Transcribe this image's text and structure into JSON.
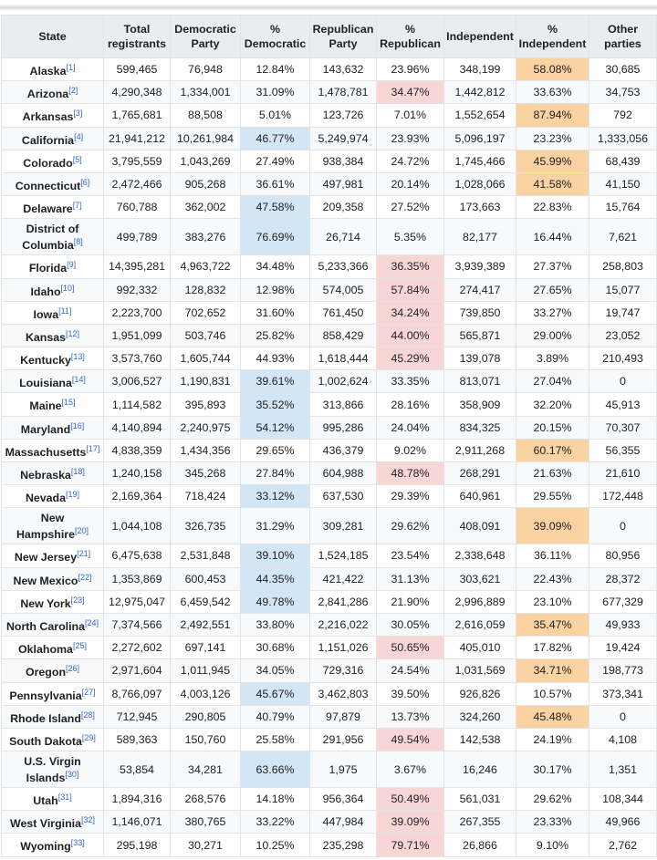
{
  "headers": [
    "State",
    "Total registrants",
    "Democratic Party",
    "% Democratic",
    "Republican Party",
    "% Republican",
    "Independent",
    "% Independent",
    "Other parties"
  ],
  "highlight_colors": {
    "dem": "#d2e6f5",
    "rep": "#f9d6d6",
    "ind": "#fbd2a2"
  },
  "rows": [
    {
      "state": "Alaska",
      "ref": "[1]",
      "total": "599,465",
      "dem": "76,948",
      "pdem": "12.84%",
      "rep": "143,632",
      "prep": "23.96%",
      "ind": "348,199",
      "pind": "58.08%",
      "other": "30,685",
      "highlight": "ind"
    },
    {
      "state": "Arizona",
      "ref": "[2]",
      "total": "4,290,348",
      "dem": "1,334,001",
      "pdem": "31.09%",
      "rep": "1,478,781",
      "prep": "34.47%",
      "ind": "1,442,812",
      "pind": "33.63%",
      "other": "34,753",
      "highlight": "rep"
    },
    {
      "state": "Arkansas",
      "ref": "[3]",
      "total": "1,765,681",
      "dem": "88,508",
      "pdem": "5.01%",
      "rep": "123,726",
      "prep": "7.01%",
      "ind": "1,552,654",
      "pind": "87.94%",
      "other": "792",
      "highlight": "ind"
    },
    {
      "state": "California",
      "ref": "[4]",
      "total": "21,941,212",
      "dem": "10,261,984",
      "pdem": "46.77%",
      "rep": "5,249,974",
      "prep": "23.93%",
      "ind": "5,096,197",
      "pind": "23.23%",
      "other": "1,333,056",
      "highlight": "dem"
    },
    {
      "state": "Colorado",
      "ref": "[5]",
      "total": "3,795,559",
      "dem": "1,043,269",
      "pdem": "27.49%",
      "rep": "938,384",
      "prep": "24.72%",
      "ind": "1,745,466",
      "pind": "45.99%",
      "other": "68,439",
      "highlight": "ind"
    },
    {
      "state": "Connecticut",
      "ref": "[6]",
      "total": "2,472,466",
      "dem": "905,268",
      "pdem": "36.61%",
      "rep": "497,981",
      "prep": "20.14%",
      "ind": "1,028,066",
      "pind": "41.58%",
      "other": "41,150",
      "highlight": "ind"
    },
    {
      "state": "Delaware",
      "ref": "[7]",
      "total": "760,788",
      "dem": "362,002",
      "pdem": "47.58%",
      "rep": "209,358",
      "prep": "27.52%",
      "ind": "173,663",
      "pind": "22.83%",
      "other": "15,764",
      "highlight": "dem"
    },
    {
      "state": "District of Columbia",
      "ref": "[8]",
      "total": "499,789",
      "dem": "383,276",
      "pdem": "76.69%",
      "rep": "26,714",
      "prep": "5.35%",
      "ind": "82,177",
      "pind": "16.44%",
      "other": "7,621",
      "highlight": "dem",
      "tall": true
    },
    {
      "state": "Florida",
      "ref": "[9]",
      "total": "14,395,281",
      "dem": "4,963,722",
      "pdem": "34.48%",
      "rep": "5,233,366",
      "prep": "36.35%",
      "ind": "3,939,389",
      "pind": "27.37%",
      "other": "258,803",
      "highlight": "rep"
    },
    {
      "state": "Idaho",
      "ref": "[10]",
      "total": "992,332",
      "dem": "128,832",
      "pdem": "12.98%",
      "rep": "574,005",
      "prep": "57.84%",
      "ind": "274,417",
      "pind": "27.65%",
      "other": "15,077",
      "highlight": "rep"
    },
    {
      "state": "Iowa",
      "ref": "[11]",
      "total": "2,223,700",
      "dem": "702,652",
      "pdem": "31.60%",
      "rep": "761,450",
      "prep": "34.24%",
      "ind": "739,850",
      "pind": "33.27%",
      "other": "19,747",
      "highlight": "rep"
    },
    {
      "state": "Kansas",
      "ref": "[12]",
      "total": "1,951,099",
      "dem": "503,746",
      "pdem": "25.82%",
      "rep": "858,429",
      "prep": "44.00%",
      "ind": "565,871",
      "pind": "29.00%",
      "other": "23,052",
      "highlight": "rep"
    },
    {
      "state": "Kentucky",
      "ref": "[13]",
      "total": "3,573,760",
      "dem": "1,605,744",
      "pdem": "44.93%",
      "rep": "1,618,444",
      "prep": "45.29%",
      "ind": "139,078",
      "pind": "3.89%",
      "other": "210,493",
      "highlight": "rep"
    },
    {
      "state": "Louisiana",
      "ref": "[14]",
      "total": "3,006,527",
      "dem": "1,190,831",
      "pdem": "39.61%",
      "rep": "1,002,624",
      "prep": "33.35%",
      "ind": "813,071",
      "pind": "27.04%",
      "other": "0",
      "highlight": "dem"
    },
    {
      "state": "Maine",
      "ref": "[15]",
      "total": "1,114,582",
      "dem": "395,893",
      "pdem": "35.52%",
      "rep": "313,866",
      "prep": "28.16%",
      "ind": "358,909",
      "pind": "32.20%",
      "other": "45,913",
      "highlight": "dem"
    },
    {
      "state": "Maryland",
      "ref": "[16]",
      "total": "4,140,894",
      "dem": "2,240,975",
      "pdem": "54.12%",
      "rep": "995,286",
      "prep": "24.04%",
      "ind": "834,325",
      "pind": "20.15%",
      "other": "70,307",
      "highlight": "dem"
    },
    {
      "state": "Massachusetts",
      "ref": "[17]",
      "total": "4,838,359",
      "dem": "1,434,356",
      "pdem": "29.65%",
      "rep": "436,379",
      "prep": "9.02%",
      "ind": "2,911,268",
      "pind": "60.17%",
      "other": "56,355",
      "highlight": "ind"
    },
    {
      "state": "Nebraska",
      "ref": "[18]",
      "total": "1,240,158",
      "dem": "345,268",
      "pdem": "27.84%",
      "rep": "604,988",
      "prep": "48.78%",
      "ind": "268,291",
      "pind": "21.63%",
      "other": "21,610",
      "highlight": "rep"
    },
    {
      "state": "Nevada",
      "ref": "[19]",
      "total": "2,169,364",
      "dem": "718,424",
      "pdem": "33.12%",
      "rep": "637,530",
      "prep": "29.39%",
      "ind": "640,961",
      "pind": "29.55%",
      "other": "172,448",
      "highlight": "dem"
    },
    {
      "state": "New Hampshire",
      "ref": "[20]",
      "total": "1,044,108",
      "dem": "326,735",
      "pdem": "31.29%",
      "rep": "309,281",
      "prep": "29.62%",
      "ind": "408,091",
      "pind": "39.09%",
      "other": "0",
      "highlight": "ind",
      "tall": true
    },
    {
      "state": "New Jersey",
      "ref": "[21]",
      "total": "6,475,638",
      "dem": "2,531,848",
      "pdem": "39.10%",
      "rep": "1,524,185",
      "prep": "23.54%",
      "ind": "2,338,648",
      "pind": "36.11%",
      "other": "80,956",
      "highlight": "dem"
    },
    {
      "state": "New Mexico",
      "ref": "[22]",
      "total": "1,353,869",
      "dem": "600,453",
      "pdem": "44.35%",
      "rep": "421,422",
      "prep": "31.13%",
      "ind": "303,621",
      "pind": "22.43%",
      "other": "28,372",
      "highlight": "dem"
    },
    {
      "state": "New York",
      "ref": "[23]",
      "total": "12,975,047",
      "dem": "6,459,542",
      "pdem": "49.78%",
      "rep": "2,841,286",
      "prep": "21.90%",
      "ind": "2,996,889",
      "pind": "23.10%",
      "other": "677,329",
      "highlight": "dem"
    },
    {
      "state": "North Carolina",
      "ref": "[24]",
      "total": "7,374,566",
      "dem": "2,492,551",
      "pdem": "33.80%",
      "rep": "2,216,022",
      "prep": "30.05%",
      "ind": "2,616,059",
      "pind": "35.47%",
      "other": "49,933",
      "highlight": "ind"
    },
    {
      "state": "Oklahoma",
      "ref": "[25]",
      "total": "2,272,602",
      "dem": "697,141",
      "pdem": "30.68%",
      "rep": "1,151,026",
      "prep": "50.65%",
      "ind": "405,010",
      "pind": "17.82%",
      "other": "19,424",
      "highlight": "rep"
    },
    {
      "state": "Oregon",
      "ref": "[26]",
      "total": "2,971,604",
      "dem": "1,011,945",
      "pdem": "34.05%",
      "rep": "729,316",
      "prep": "24.54%",
      "ind": "1,031,569",
      "pind": "34.71%",
      "other": "198,773",
      "highlight": "ind"
    },
    {
      "state": "Pennsylvania",
      "ref": "[27]",
      "total": "8,766,097",
      "dem": "4,003,126",
      "pdem": "45.67%",
      "rep": "3,462,803",
      "prep": "39.50%",
      "ind": "926,826",
      "pind": "10.57%",
      "other": "373,341",
      "highlight": "dem"
    },
    {
      "state": "Rhode Island",
      "ref": "[28]",
      "total": "712,945",
      "dem": "290,805",
      "pdem": "40.79%",
      "rep": "97,879",
      "prep": "13.73%",
      "ind": "324,260",
      "pind": "45.48%",
      "other": "0",
      "highlight": "ind"
    },
    {
      "state": "South Dakota",
      "ref": "[29]",
      "total": "589,363",
      "dem": "150,760",
      "pdem": "25.58%",
      "rep": "291,956",
      "prep": "49.54%",
      "ind": "142,538",
      "pind": "24.19%",
      "other": "4,108",
      "highlight": "rep"
    },
    {
      "state": "U.S. Virgin Islands",
      "ref": "[30]",
      "total": "53,854",
      "dem": "34,281",
      "pdem": "63.66%",
      "rep": "1,975",
      "prep": "3.67%",
      "ind": "16,246",
      "pind": "30.17%",
      "other": "1,351",
      "highlight": "dem",
      "tall": true
    },
    {
      "state": "Utah",
      "ref": "[31]",
      "total": "1,894,316",
      "dem": "268,576",
      "pdem": "14.18%",
      "rep": "956,364",
      "prep": "50.49%",
      "ind": "561,031",
      "pind": "29.62%",
      "other": "108,344",
      "highlight": "rep"
    },
    {
      "state": "West Virginia",
      "ref": "[32]",
      "total": "1,146,071",
      "dem": "380,765",
      "pdem": "33.22%",
      "rep": "447,984",
      "prep": "39.09%",
      "ind": "267,355",
      "pind": "23.33%",
      "other": "49,966",
      "highlight": "rep"
    },
    {
      "state": "Wyoming",
      "ref": "[33]",
      "total": "295,198",
      "dem": "30,271",
      "pdem": "10.25%",
      "rep": "235,298",
      "prep": "79.71%",
      "ind": "26,866",
      "pind": "9.10%",
      "other": "2,762",
      "highlight": "rep"
    }
  ]
}
